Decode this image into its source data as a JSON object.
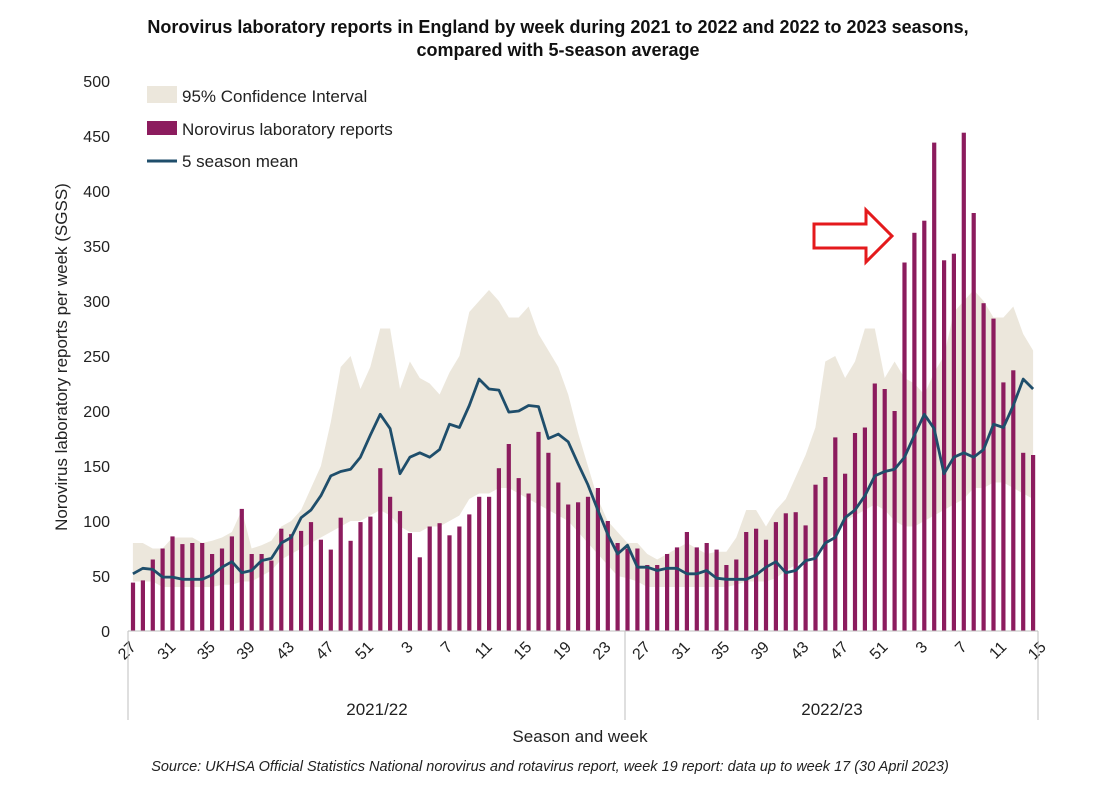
{
  "chart_data": {
    "type": "bar",
    "title_line1": "Norovirus laboratory reports in England by week during 2021 to 2022 and 2022 to 2023 seasons,",
    "title_line2": "compared with 5-season average",
    "xlabel": "Season and week",
    "ylabel": "Norovirus laboratory reports per week (SGSS)",
    "source": "Source: UKHSA Official Statistics National norovirus and rotavirus report, week 19 report: data up to week 17 (30 April 2023)",
    "ylim": [
      0,
      500
    ],
    "y_ticks": [
      0,
      50,
      100,
      150,
      200,
      250,
      300,
      350,
      400,
      450,
      500
    ],
    "x_tick_labels": [
      "27",
      "31",
      "35",
      "39",
      "43",
      "47",
      "51",
      "3",
      "7",
      "11",
      "15",
      "19",
      "23",
      "27",
      "31",
      "35",
      "39",
      "43",
      "47",
      "51",
      "3",
      "7",
      "11",
      "15"
    ],
    "seasons": [
      "2021/22",
      "2022/23"
    ],
    "legend": {
      "ci_label": "95% Confidence Interval",
      "bars_label": "Norovirus laboratory reports",
      "mean_label": "5 season mean"
    },
    "colors": {
      "bars": "#8c1c5e",
      "mean": "#1f4e6b",
      "ci": "#ece7dc",
      "arrow": "#e41a1c"
    },
    "bar_values": [
      44,
      46,
      65,
      75,
      86,
      79,
      80,
      80,
      70,
      75,
      86,
      111,
      70,
      70,
      64,
      93,
      88,
      91,
      99,
      83,
      74,
      103,
      82,
      99,
      104,
      148,
      122,
      109,
      89,
      67,
      95,
      98,
      87,
      95,
      106,
      122,
      122,
      148,
      170,
      139,
      125,
      181,
      162,
      135,
      115,
      117,
      122,
      130,
      100,
      80,
      75,
      75,
      60,
      60,
      70,
      76,
      90,
      76,
      80,
      74,
      60,
      65,
      90,
      93,
      83,
      99,
      107,
      108,
      96,
      133,
      140,
      176,
      143,
      180,
      185,
      225,
      220,
      200,
      335,
      362,
      373,
      444,
      337,
      343,
      453,
      380,
      298,
      284,
      226,
      237,
      162,
      160
    ],
    "mean_values": [
      52,
      57,
      56,
      49,
      49,
      47,
      47,
      47,
      51,
      58,
      63,
      53,
      55,
      64,
      66,
      80,
      85,
      103,
      110,
      123,
      141,
      145,
      147,
      158,
      178,
      197,
      184,
      143,
      158,
      162,
      158,
      165,
      188,
      185,
      205,
      229,
      220,
      219,
      199,
      200,
      205,
      204,
      175,
      179,
      172,
      152,
      133,
      110,
      88,
      70,
      78,
      58,
      58,
      55,
      57,
      57,
      52,
      52,
      55,
      48,
      47,
      47,
      47,
      51,
      58,
      63,
      53,
      55,
      64,
      66,
      80,
      85,
      103,
      110,
      123,
      141,
      145,
      147,
      158,
      178,
      197,
      184,
      143,
      158,
      162,
      158,
      165,
      188,
      185,
      205,
      229,
      220
    ],
    "ci_upper": [
      80,
      80,
      75,
      75,
      85,
      85,
      85,
      80,
      82,
      85,
      90,
      110,
      75,
      78,
      82,
      95,
      100,
      110,
      130,
      150,
      190,
      240,
      250,
      220,
      240,
      275,
      275,
      220,
      245,
      230,
      225,
      215,
      235,
      250,
      290,
      300,
      310,
      300,
      285,
      285,
      295,
      270,
      255,
      240,
      215,
      180,
      150,
      120,
      100,
      90,
      80,
      80,
      70,
      65,
      70,
      75,
      80,
      75,
      70,
      72,
      72,
      85,
      110,
      110,
      95,
      110,
      120,
      140,
      160,
      185,
      245,
      250,
      230,
      245,
      275,
      275,
      230,
      245,
      230,
      225,
      215,
      235,
      250,
      290,
      300,
      310,
      300,
      285,
      285,
      295,
      270,
      255
    ],
    "ci_lower": [
      45,
      45,
      45,
      40,
      40,
      40,
      40,
      40,
      40,
      42,
      42,
      45,
      45,
      50,
      55,
      65,
      70,
      75,
      80,
      85,
      90,
      95,
      100,
      100,
      105,
      110,
      105,
      95,
      90,
      90,
      95,
      95,
      100,
      105,
      120,
      125,
      125,
      130,
      130,
      125,
      120,
      115,
      110,
      105,
      100,
      90,
      80,
      70,
      60,
      50,
      48,
      45,
      40,
      40,
      40,
      40,
      40,
      40,
      40,
      40,
      40,
      42,
      45,
      45,
      45,
      48,
      55,
      60,
      65,
      70,
      80,
      90,
      100,
      105,
      110,
      115,
      110,
      100,
      95,
      95,
      100,
      105,
      110,
      115,
      120,
      130,
      130,
      135,
      135,
      130,
      125,
      120
    ]
  }
}
